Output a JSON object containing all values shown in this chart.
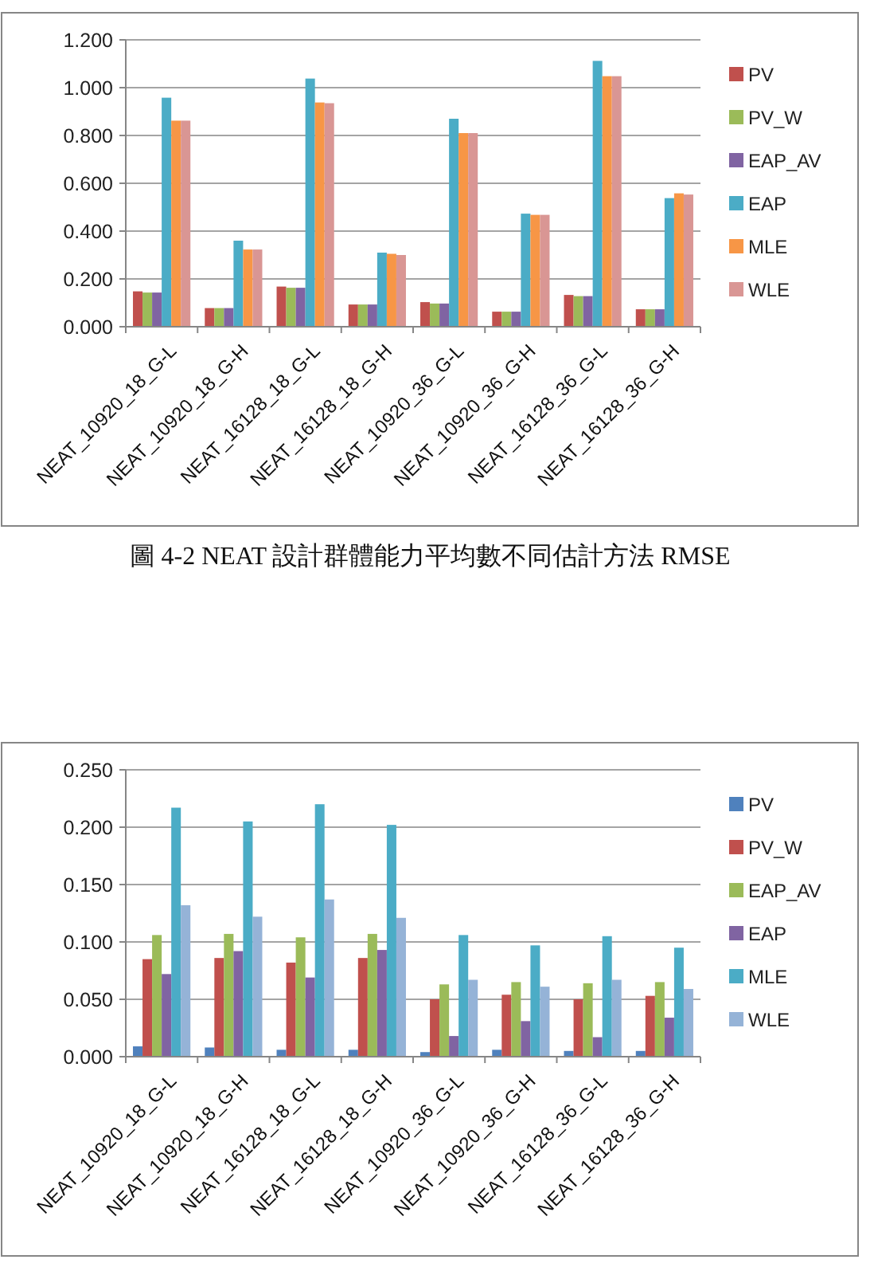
{
  "chart_data": [
    {
      "type": "bar",
      "categories": [
        "NEAT_10920_18_G-L",
        "NEAT_10920_18_G-H",
        "NEAT_16128_18_G-L",
        "NEAT_16128_18_G-H",
        "NEAT_10920_36_G-L",
        "NEAT_10920_36_G-H",
        "NEAT_16128_36_G-L",
        "NEAT_16128_36_G-H"
      ],
      "series": [
        {
          "name": "PV",
          "color": "#c0504d",
          "values": [
            0.148,
            0.078,
            0.168,
            0.093,
            0.103,
            0.063,
            0.133,
            0.073
          ]
        },
        {
          "name": "PV_W",
          "color": "#9bbb59",
          "values": [
            0.143,
            0.078,
            0.163,
            0.093,
            0.097,
            0.063,
            0.128,
            0.073
          ]
        },
        {
          "name": "EAP_AV",
          "color": "#8064a2",
          "values": [
            0.143,
            0.078,
            0.163,
            0.093,
            0.097,
            0.063,
            0.128,
            0.073
          ]
        },
        {
          "name": "EAP",
          "color": "#4bacc6",
          "values": [
            0.958,
            0.36,
            1.038,
            0.31,
            0.87,
            0.473,
            1.112,
            0.538
          ]
        },
        {
          "name": "MLE",
          "color": "#f79646",
          "values": [
            0.862,
            0.323,
            0.938,
            0.305,
            0.81,
            0.468,
            1.048,
            0.558
          ]
        },
        {
          "name": "WLE",
          "color": "#d99694",
          "values": [
            0.862,
            0.323,
            0.935,
            0.3,
            0.81,
            0.468,
            1.048,
            0.553
          ]
        }
      ],
      "ylim": [
        0,
        1.2
      ],
      "yticks": [
        {
          "value": 0,
          "label": "0.000"
        },
        {
          "value": 0.2,
          "label": "0.200"
        },
        {
          "value": 0.4,
          "label": "0.400"
        },
        {
          "value": 0.6,
          "label": "0.600"
        },
        {
          "value": 0.8,
          "label": "0.800"
        },
        {
          "value": 1,
          "label": "1.000"
        },
        {
          "value": 1.2,
          "label": "1.200"
        }
      ],
      "grid": "y",
      "legend": "right",
      "annotations": [
        "圖 4-2 NEAT 設計群體能力平均數不同估計方法 RMSE"
      ]
    },
    {
      "type": "bar",
      "categories": [
        "NEAT_10920_18_G-L",
        "NEAT_10920_18_G-H",
        "NEAT_16128_18_G-L",
        "NEAT_16128_18_G-H",
        "NEAT_10920_36_G-L",
        "NEAT_10920_36_G-H",
        "NEAT_16128_36_G-L",
        "NEAT_16128_36_G-H"
      ],
      "series": [
        {
          "name": "PV",
          "color": "#4f81bd",
          "values": [
            0.009,
            0.008,
            0.006,
            0.006,
            0.004,
            0.006,
            0.005,
            0.005
          ]
        },
        {
          "name": "PV_W",
          "color": "#c0504d",
          "values": [
            0.085,
            0.086,
            0.082,
            0.086,
            0.05,
            0.054,
            0.05,
            0.053
          ]
        },
        {
          "name": "EAP_AV",
          "color": "#9bbb59",
          "values": [
            0.106,
            0.107,
            0.104,
            0.107,
            0.063,
            0.065,
            0.064,
            0.065
          ]
        },
        {
          "name": "EAP",
          "color": "#8064a2",
          "values": [
            0.072,
            0.092,
            0.069,
            0.093,
            0.018,
            0.031,
            0.017,
            0.034
          ]
        },
        {
          "name": "MLE",
          "color": "#4bacc6",
          "values": [
            0.217,
            0.205,
            0.22,
            0.202,
            0.106,
            0.097,
            0.105,
            0.095
          ]
        },
        {
          "name": "WLE",
          "color": "#95b3d7",
          "values": [
            0.132,
            0.122,
            0.137,
            0.121,
            0.067,
            0.061,
            0.067,
            0.059
          ]
        }
      ],
      "ylim": [
        0,
        0.25
      ],
      "yticks": [
        {
          "value": 0,
          "label": "0.000"
        },
        {
          "value": 0.05,
          "label": "0.050"
        },
        {
          "value": 0.1,
          "label": "0.100"
        },
        {
          "value": 0.15,
          "label": "0.150"
        },
        {
          "value": 0.2,
          "label": "0.200"
        },
        {
          "value": 0.25,
          "label": "0.250"
        }
      ],
      "grid": "y",
      "legend": "right"
    }
  ]
}
